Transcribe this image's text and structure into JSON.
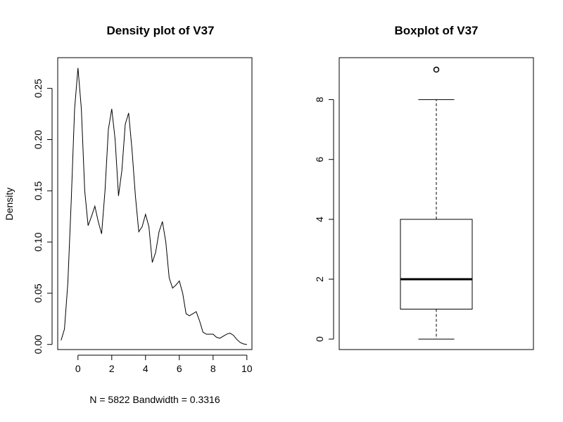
{
  "chart_data": [
    {
      "type": "line",
      "title": "Density plot of V37",
      "xlabel": "N = 5822   Bandwidth = 0.3316",
      "ylabel": "Density",
      "xlim": [
        -1.2,
        10.3
      ],
      "ylim": [
        -0.005,
        0.28
      ],
      "x_ticks": [
        0,
        2,
        4,
        6,
        8,
        10
      ],
      "y_ticks": [
        0.0,
        0.05,
        0.1,
        0.15,
        0.2,
        0.25
      ],
      "y_tick_labels": [
        "0.00",
        "0.05",
        "0.10",
        "0.15",
        "0.20",
        "0.25"
      ],
      "series": [
        {
          "x": [
            -1.0,
            -0.8,
            -0.6,
            -0.4,
            -0.2,
            0.0,
            0.2,
            0.4,
            0.6,
            0.8,
            1.0,
            1.2,
            1.4,
            1.6,
            1.8,
            2.0,
            2.2,
            2.4,
            2.6,
            2.8,
            3.0,
            3.2,
            3.4,
            3.6,
            3.8,
            4.0,
            4.2,
            4.4,
            4.6,
            4.8,
            5.0,
            5.2,
            5.4,
            5.6,
            5.8,
            6.0,
            6.2,
            6.4,
            6.6,
            6.8,
            7.0,
            7.2,
            7.4,
            7.6,
            7.8,
            8.0,
            8.2,
            8.4,
            8.6,
            8.8,
            9.0,
            9.2,
            9.4,
            9.6,
            9.8,
            10.0
          ],
          "y": [
            0.004,
            0.015,
            0.06,
            0.14,
            0.23,
            0.27,
            0.23,
            0.15,
            0.116,
            0.125,
            0.135,
            0.12,
            0.108,
            0.15,
            0.21,
            0.23,
            0.2,
            0.145,
            0.17,
            0.215,
            0.226,
            0.19,
            0.145,
            0.11,
            0.115,
            0.127,
            0.115,
            0.08,
            0.09,
            0.11,
            0.12,
            0.1,
            0.065,
            0.055,
            0.058,
            0.062,
            0.05,
            0.03,
            0.028,
            0.03,
            0.032,
            0.023,
            0.012,
            0.01,
            0.01,
            0.01,
            0.007,
            0.006,
            0.008,
            0.01,
            0.011,
            0.009,
            0.005,
            0.002,
            0.0005,
            0.0
          ]
        }
      ]
    },
    {
      "type": "boxplot",
      "title": "Boxplot of V37",
      "ylim": [
        -0.35,
        9.4
      ],
      "y_ticks": [
        0,
        2,
        4,
        6,
        8
      ],
      "y_tick_labels": [
        "0",
        "2",
        "4",
        "6",
        "8"
      ],
      "box": {
        "whisker_low": 0,
        "q1": 1,
        "median": 2,
        "q3": 4,
        "whisker_high": 8,
        "outliers": [
          9
        ]
      }
    }
  ]
}
